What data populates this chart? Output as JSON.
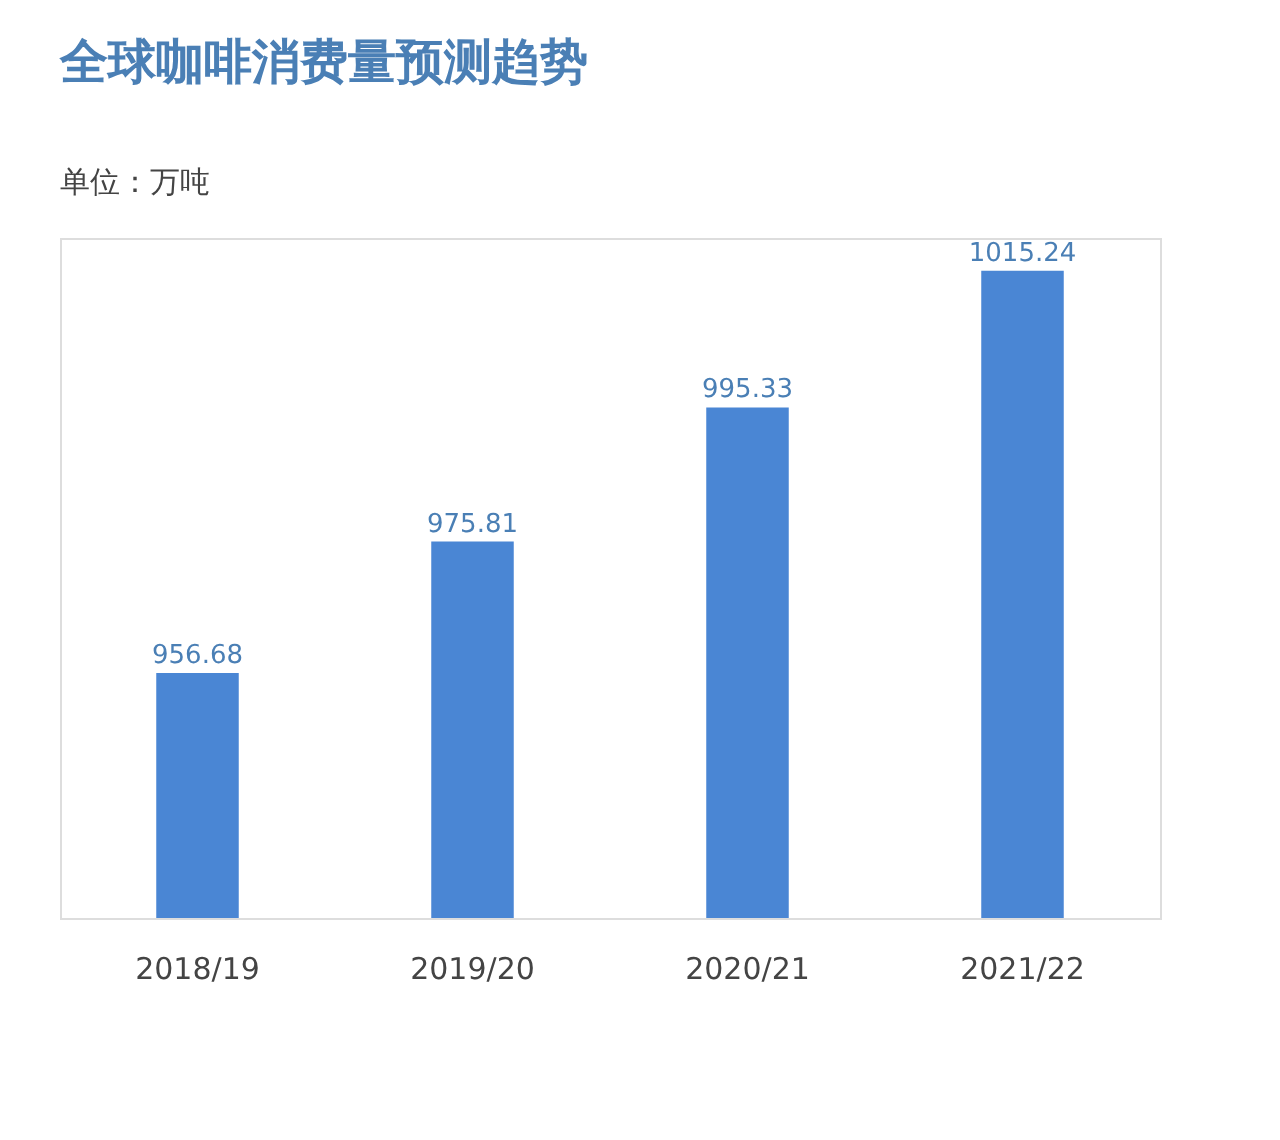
{
  "chart_data": {
    "type": "bar",
    "title": "全球咖啡消费量预测趋势",
    "subtitle": "单位：万吨",
    "categories": [
      "2018/19",
      "2019/20",
      "2020/21",
      "2021/22"
    ],
    "values": [
      956.68,
      975.81,
      995.33,
      1015.24
    ],
    "color": "#4a86d4",
    "data_labels": true,
    "ylim": [
      921,
      1020
    ],
    "tick_labels": "x",
    "grid": false
  }
}
